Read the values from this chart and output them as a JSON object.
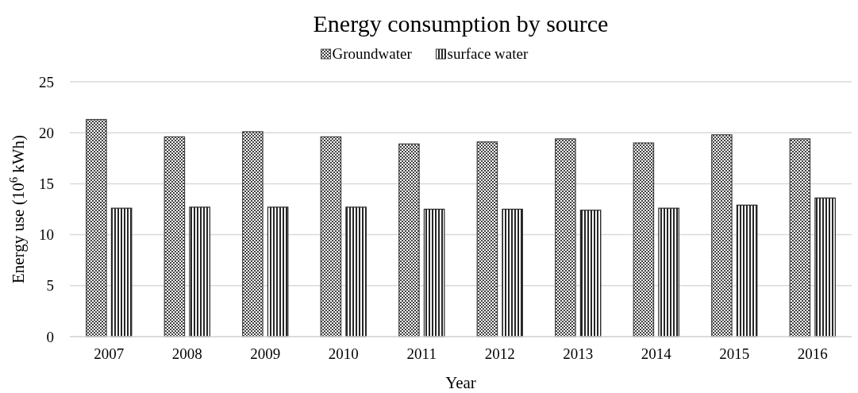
{
  "chart_data": {
    "type": "bar",
    "title": "Energy consumption by source",
    "xlabel": "Year",
    "ylabel": "Energy use (10$^{6}$ kWh)",
    "categories": [
      "2007",
      "2008",
      "2009",
      "2010",
      "2011",
      "2012",
      "2013",
      "2014",
      "2015",
      "2016"
    ],
    "series": [
      {
        "name": "Groundwater",
        "color": "#404040",
        "values": [
          21.3,
          19.6,
          20.1,
          19.6,
          18.9,
          19.1,
          19.4,
          19.0,
          19.8,
          19.4
        ]
      },
      {
        "name": "surface water",
        "color": "#262626",
        "values": [
          12.6,
          12.7,
          12.7,
          12.7,
          12.5,
          12.5,
          12.4,
          12.6,
          12.9,
          13.6
        ]
      }
    ],
    "ylim": [
      0,
      25
    ],
    "yticks": [
      0,
      5,
      10,
      15,
      20,
      25
    ],
    "grid": "y",
    "legend": "top"
  }
}
